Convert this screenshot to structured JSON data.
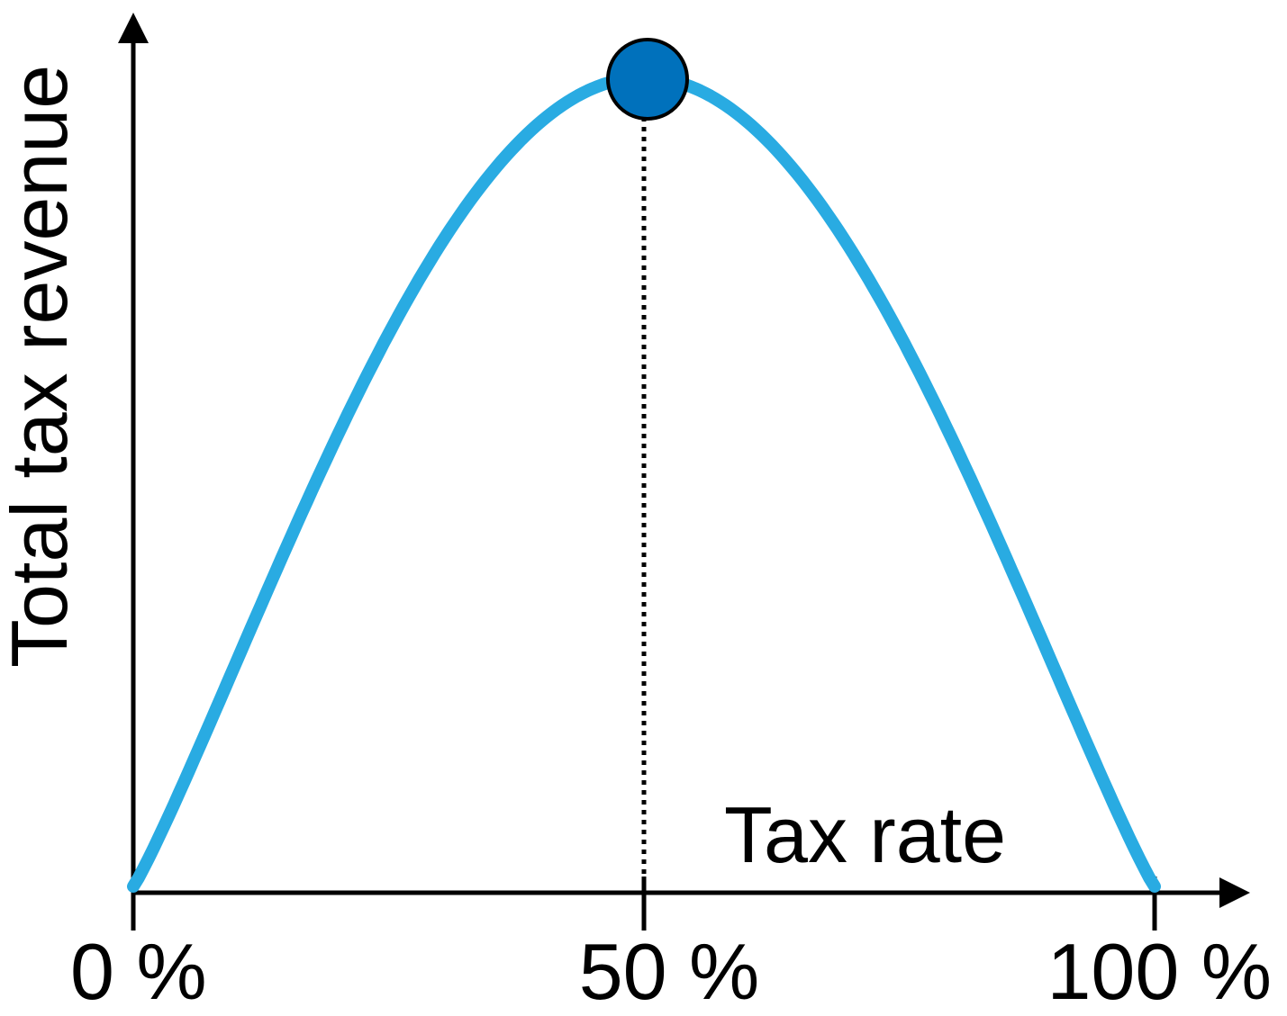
{
  "chart_data": {
    "type": "line",
    "xlabel": "Tax rate",
    "ylabel": "Total tax revenue",
    "tick_labels": [
      "0 %",
      "50 %",
      "100 %"
    ],
    "ticks": [
      0,
      50,
      100
    ],
    "xlim": [
      0,
      100
    ],
    "ylim": [
      0,
      100
    ],
    "series": [
      {
        "x": [
          0,
          5,
          10,
          15,
          20,
          25,
          30,
          35,
          40,
          45,
          50,
          55,
          60,
          65,
          70,
          75,
          80,
          85,
          90,
          95,
          100
        ],
        "values": [
          0,
          10,
          21,
          32,
          43,
          54,
          64,
          74,
          83,
          93,
          100,
          93,
          83,
          74,
          64,
          54,
          43,
          32,
          21,
          10,
          0
        ],
        "color": "#29abe2"
      }
    ],
    "peak": {
      "x": 50,
      "y": 100,
      "color": "#0071bc"
    },
    "grid": false
  }
}
